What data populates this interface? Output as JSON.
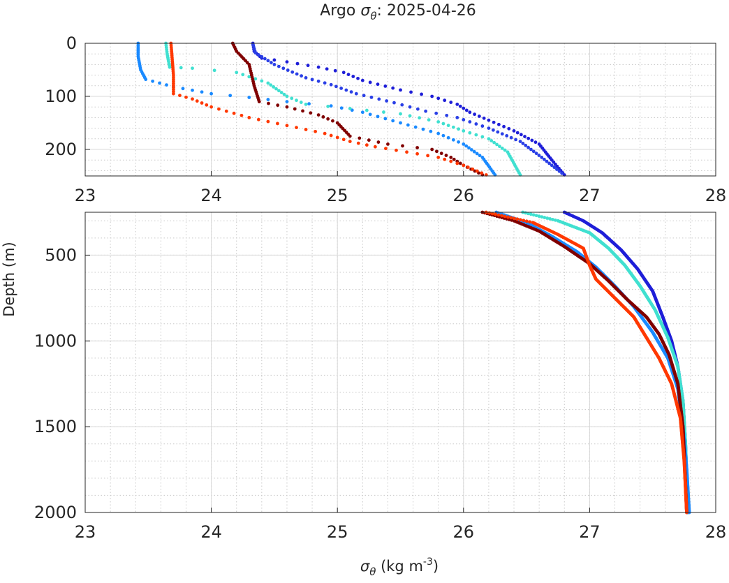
{
  "figure": {
    "title_prefix": "Argo ",
    "title_symbol": "σ",
    "title_symbol_sub": "θ",
    "title_suffix": ": 2025-04-26",
    "ylabel": "Depth (m)",
    "xlabel_symbol": "σ",
    "xlabel_symbol_sub": "θ",
    "xlabel_unit_pre": " (kg m",
    "xlabel_unit_sup": "-3",
    "xlabel_unit_post": ")"
  },
  "chart_data": [
    {
      "type": "scatter",
      "panel": "upper",
      "xlim": [
        23,
        28
      ],
      "ylim": [
        0,
        250
      ],
      "y_reversed": true,
      "grid": true,
      "minor_grid": true,
      "x_ticks": [
        23,
        24,
        25,
        26,
        27,
        28
      ],
      "y_ticks": [
        0,
        100,
        200
      ],
      "series": [
        {
          "color": "#1e1ed8",
          "points": [
            [
              24.33,
              0
            ],
            [
              24.34,
              15
            ],
            [
              24.4,
              28
            ],
            [
              24.6,
              35
            ],
            [
              24.85,
              45
            ],
            [
              25.05,
              55
            ],
            [
              25.2,
              70
            ],
            [
              25.5,
              88
            ],
            [
              25.75,
              100
            ],
            [
              25.95,
              115
            ],
            [
              26.05,
              130
            ],
            [
              26.2,
              145
            ],
            [
              26.4,
              165
            ],
            [
              26.6,
              190
            ],
            [
              26.7,
              220
            ],
            [
              26.8,
              248
            ]
          ]
        },
        {
          "color": "#2a3fe6",
          "points": [
            [
              24.33,
              2
            ],
            [
              24.35,
              18
            ],
            [
              24.5,
              40
            ],
            [
              24.75,
              65
            ],
            [
              24.95,
              78
            ],
            [
              25.15,
              95
            ],
            [
              25.45,
              112
            ],
            [
              25.7,
              128
            ],
            [
              25.95,
              140
            ],
            [
              26.2,
              160
            ],
            [
              26.45,
              185
            ],
            [
              26.62,
              215
            ],
            [
              26.78,
              245
            ]
          ]
        },
        {
          "color": "#1a8aff",
          "points": [
            [
              23.42,
              0
            ],
            [
              23.42,
              25
            ],
            [
              23.44,
              50
            ],
            [
              23.48,
              68
            ],
            [
              23.7,
              82
            ],
            [
              24.0,
              95
            ],
            [
              24.3,
              102
            ],
            [
              24.6,
              110
            ],
            [
              24.95,
              118
            ],
            [
              25.2,
              130
            ],
            [
              25.5,
              150
            ],
            [
              25.8,
              170
            ],
            [
              26.0,
              190
            ],
            [
              26.15,
              215
            ],
            [
              26.25,
              248
            ]
          ]
        },
        {
          "color": "#40e0d0",
          "points": [
            [
              23.64,
              0
            ],
            [
              23.65,
              20
            ],
            [
              23.67,
              45
            ],
            [
              23.85,
              47
            ],
            [
              24.2,
              55
            ],
            [
              24.45,
              75
            ],
            [
              24.6,
              100
            ],
            [
              24.75,
              115
            ],
            [
              25.1,
              123
            ],
            [
              25.5,
              133
            ],
            [
              25.8,
              148
            ],
            [
              26.0,
              165
            ],
            [
              26.2,
              180
            ],
            [
              26.35,
              205
            ],
            [
              26.45,
              248
            ]
          ]
        },
        {
          "color": "#800000",
          "points": [
            [
              24.17,
              0
            ],
            [
              24.2,
              15
            ],
            [
              24.3,
              40
            ],
            [
              24.34,
              80
            ],
            [
              24.38,
              110
            ],
            [
              24.6,
              120
            ],
            [
              24.85,
              135
            ],
            [
              25.0,
              150
            ],
            [
              25.1,
              175
            ],
            [
              25.4,
              190
            ],
            [
              25.75,
              200
            ],
            [
              25.9,
              215
            ],
            [
              26.0,
              230
            ],
            [
              26.15,
              248
            ]
          ]
        },
        {
          "color": "#ff3800",
          "points": [
            [
              23.68,
              0
            ],
            [
              23.69,
              30
            ],
            [
              23.7,
              60
            ],
            [
              23.7,
              95
            ],
            [
              23.85,
              105
            ],
            [
              24.0,
              120
            ],
            [
              24.3,
              140
            ],
            [
              24.6,
              155
            ],
            [
              24.9,
              170
            ],
            [
              25.1,
              185
            ],
            [
              25.3,
              195
            ],
            [
              25.55,
              205
            ],
            [
              25.8,
              215
            ],
            [
              26.0,
              230
            ],
            [
              26.18,
              248
            ]
          ]
        }
      ]
    },
    {
      "type": "scatter",
      "panel": "lower",
      "xlim": [
        23,
        28
      ],
      "ylim": [
        250,
        2000
      ],
      "y_reversed": true,
      "grid": true,
      "minor_grid": true,
      "x_ticks": [
        23,
        24,
        25,
        26,
        27,
        28
      ],
      "y_ticks": [
        500,
        1000,
        1500,
        2000
      ],
      "series": [
        {
          "color": "#1e1ed8",
          "points": [
            [
              26.8,
              250
            ],
            [
              26.95,
              300
            ],
            [
              27.1,
              370
            ],
            [
              27.25,
              470
            ],
            [
              27.38,
              580
            ],
            [
              27.5,
              710
            ],
            [
              27.58,
              860
            ],
            [
              27.65,
              1000
            ],
            [
              27.7,
              1150
            ],
            [
              27.74,
              1350
            ],
            [
              27.76,
              1600
            ],
            [
              27.78,
              2000
            ]
          ]
        },
        {
          "color": "#40e0d0",
          "points": [
            [
              26.47,
              250
            ],
            [
              26.75,
              300
            ],
            [
              27.0,
              370
            ],
            [
              27.15,
              460
            ],
            [
              27.28,
              560
            ],
            [
              27.4,
              680
            ],
            [
              27.52,
              820
            ],
            [
              27.62,
              980
            ],
            [
              27.7,
              1150
            ],
            [
              27.74,
              1350
            ],
            [
              27.76,
              1600
            ],
            [
              27.78,
              2000
            ]
          ]
        },
        {
          "color": "#1a8aff",
          "points": [
            [
              26.26,
              250
            ],
            [
              26.5,
              310
            ],
            [
              26.7,
              390
            ],
            [
              26.9,
              480
            ],
            [
              27.05,
              570
            ],
            [
              27.2,
              680
            ],
            [
              27.35,
              800
            ],
            [
              27.5,
              950
            ],
            [
              27.62,
              1100
            ],
            [
              27.7,
              1280
            ],
            [
              27.74,
              1500
            ],
            [
              27.77,
              1750
            ],
            [
              27.79,
              2000
            ]
          ]
        },
        {
          "color": "#800000",
          "points": [
            [
              26.15,
              250
            ],
            [
              26.4,
              300
            ],
            [
              26.6,
              360
            ],
            [
              26.8,
              450
            ],
            [
              27.0,
              550
            ],
            [
              27.15,
              650
            ],
            [
              27.3,
              760
            ],
            [
              27.45,
              860
            ],
            [
              27.55,
              960
            ],
            [
              27.63,
              1080
            ],
            [
              27.7,
              1250
            ],
            [
              27.74,
              1500
            ],
            [
              27.77,
              2000
            ]
          ]
        },
        {
          "color": "#ff3800",
          "points": [
            [
              26.18,
              250
            ],
            [
              26.55,
              310
            ],
            [
              26.75,
              380
            ],
            [
              26.95,
              460
            ],
            [
              27.0,
              560
            ],
            [
              27.05,
              640
            ],
            [
              27.2,
              750
            ],
            [
              27.35,
              860
            ],
            [
              27.45,
              980
            ],
            [
              27.55,
              1100
            ],
            [
              27.65,
              1250
            ],
            [
              27.72,
              1450
            ],
            [
              27.75,
              1700
            ],
            [
              27.77,
              2000
            ]
          ]
        }
      ]
    }
  ]
}
